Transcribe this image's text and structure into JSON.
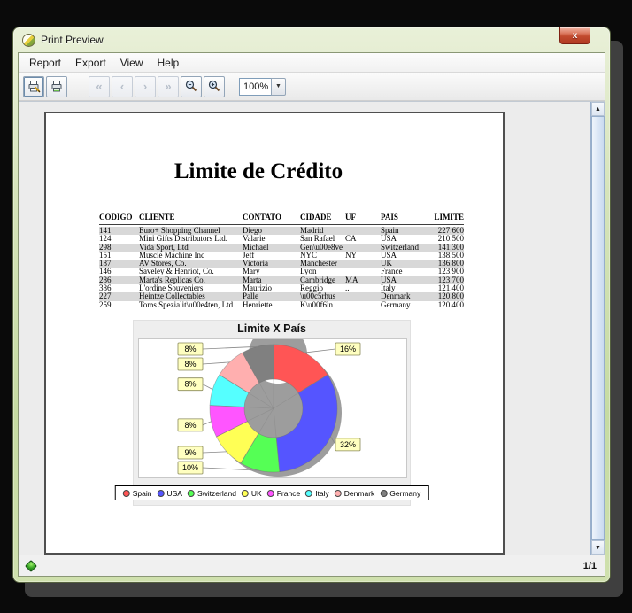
{
  "window": {
    "title": "Print Preview"
  },
  "menu": {
    "items": [
      "Report",
      "Export",
      "View",
      "Help"
    ]
  },
  "toolbar": {
    "zoom_value": "100%",
    "buttons": [
      "print-dialog",
      "print",
      "first-page",
      "previous-page",
      "next-page",
      "last-page",
      "zoom-out",
      "zoom-in"
    ]
  },
  "icons": {
    "window_icon": "jasperreports-ball",
    "nav_glyphs": {
      "first": "«",
      "previous": "‹",
      "next": "›",
      "last": "»"
    },
    "dropdown_glyph": "▼",
    "scroll_up_glyph": "▲",
    "scroll_down_glyph": "▼",
    "close_glyph": "x"
  },
  "status_bar": {
    "page_indicator": "1/1"
  },
  "report": {
    "title": "Limite de Crédito",
    "table": {
      "headers": [
        "CODIGO",
        "CLIENTE",
        "CONTATO",
        "CIDADE",
        "UF",
        "PAIS",
        "LIMITE"
      ],
      "rows": [
        [
          "141",
          "Euro+ Shopping Channel",
          "Diego",
          "Madrid",
          "",
          "Spain",
          "227.600"
        ],
        [
          "124",
          "Mini Gifts Distributors Ltd.",
          "Valarie",
          "San Rafael",
          "CA",
          "USA",
          "210.500"
        ],
        [
          "298",
          "Vida Sport, Ltd",
          "Michael",
          "Gen\\u00e8ve",
          "",
          "Switzerland",
          "141.300"
        ],
        [
          "151",
          "Muscle Machine Inc",
          "Jeff",
          "NYC",
          "NY",
          "USA",
          "138.500"
        ],
        [
          "187",
          "AV Stores, Co.",
          "Victoria",
          "Manchester",
          "",
          "UK",
          "136.800"
        ],
        [
          "146",
          "Saveley & Henriot, Co.",
          "Mary",
          "Lyon",
          "",
          "France",
          "123.900"
        ],
        [
          "286",
          "Marta's Replicas Co.",
          "Marta",
          "Cambridge",
          "MA",
          "USA",
          "123.700"
        ],
        [
          "386",
          "L'ordine Souveniers",
          "Maurizio",
          "Reggio",
          "..",
          "Italy",
          "121.400"
        ],
        [
          "227",
          "Heintze Collectables",
          "Palle",
          "\\u00c5rhus",
          "",
          "Denmark",
          "120.800"
        ],
        [
          "259",
          "Toms Spezialit\\u00e4ten, Ltd",
          "Henriette",
          "K\\u00f6ln",
          "",
          "Germany",
          "120.400"
        ]
      ]
    }
  },
  "chart_data": {
    "type": "pie",
    "subtype": "donut",
    "title": "Limite X País",
    "categories": [
      "Spain",
      "USA",
      "Switzerland",
      "UK",
      "France",
      "Italy",
      "Denmark",
      "Germany"
    ],
    "values": [
      16,
      32,
      10,
      9,
      8,
      8,
      8,
      8
    ],
    "percent_labels": [
      "16%",
      "32%",
      "10%",
      "9%",
      "8%",
      "8%",
      "8%",
      "8%"
    ],
    "colors": [
      "#ff5555",
      "#5555ff",
      "#55ff55",
      "#ffff55",
      "#ff55ff",
      "#55ffff",
      "#ffafaf",
      "#808080"
    ],
    "legend_position": "bottom",
    "label_box_color": "#ffffc0",
    "shadow_color": "#9d9d9d",
    "plot_background": "#ffffff",
    "chart_background": "#eeeeee"
  },
  "colors": {
    "frame_green": "#cfe0ad",
    "close_red": "#c14328",
    "zebra_row": "#d8d8d8",
    "viewer_background": "#ececec",
    "status_indicator": "#2f9e1e"
  }
}
